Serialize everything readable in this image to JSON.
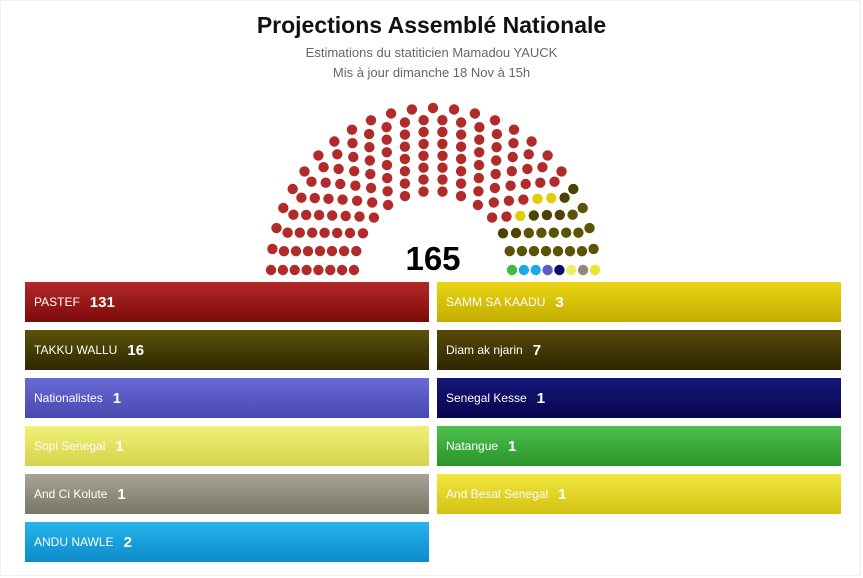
{
  "header": {
    "title": "Projections Assemblé Nationale",
    "subtitle_line1": "Estimations du statiticien Mamadou YAUCK",
    "subtitle_line2": "Mis à jour dimanche 18 Nov à 15h"
  },
  "chart_data": {
    "type": "parliament",
    "title": "Projections Assemblé Nationale",
    "total_label": "165",
    "total_seats": 165,
    "series": [
      {
        "name": "PASTEF",
        "value": 131,
        "color": "#b22b2b"
      },
      {
        "name": "TAKKU WALLU",
        "value": 16,
        "color": "#5b5305"
      },
      {
        "name": "Nationalistes",
        "value": 1,
        "color": "#5a5ac8"
      },
      {
        "name": "Sopi Senegal",
        "value": 1,
        "color": "#ecec6a"
      },
      {
        "name": "And Ci Kolute",
        "value": 1,
        "color": "#8e8a7c"
      },
      {
        "name": "ANDU NAWLE",
        "value": 2,
        "color": "#1ea9e4"
      },
      {
        "name": "SAMM SA KAADU",
        "value": 3,
        "color": "#e2cd05"
      },
      {
        "name": "Diam ak njarin",
        "value": 7,
        "color": "#4e4203"
      },
      {
        "name": "Senegal Kesse",
        "value": 1,
        "color": "#0d0d6b"
      },
      {
        "name": "Natangue",
        "value": 1,
        "color": "#3dbe3d"
      },
      {
        "name": "And Besal Senegal",
        "value": 1,
        "color": "#ede132"
      }
    ],
    "seat_order": [
      "PASTEF",
      "SAMM SA KAADU",
      "Diam ak njarin",
      "TAKKU WALLU",
      "Natangue",
      "ANDU NAWLE",
      "Nationalistes",
      "Senegal Kesse",
      "Sopi Senegal",
      "And Ci Kolute",
      "And Besal Senegal"
    ]
  },
  "legend": [
    {
      "name": "PASTEF",
      "seats": "131",
      "color_top": "#b42828",
      "color_bottom": "#7c0a0a"
    },
    {
      "name": "SAMM SA KAADU",
      "seats": "3",
      "color_top": "#ead414",
      "color_bottom": "#c4ad00"
    },
    {
      "name": "TAKKU WALLU",
      "seats": "16",
      "color_top": "#5a5208",
      "color_bottom": "#2e2800"
    },
    {
      "name": "Diam ak njarin",
      "seats": "7",
      "color_top": "#574a08",
      "color_bottom": "#2e2500"
    },
    {
      "name": "Nationalistes",
      "seats": "1",
      "color_top": "#6a6ad8",
      "color_bottom": "#4848b0"
    },
    {
      "name": "Senegal Kesse",
      "seats": "1",
      "color_top": "#16167a",
      "color_bottom": "#06064e"
    },
    {
      "name": "Sopi Senegal",
      "seats": "1",
      "color_top": "#f0f078",
      "color_bottom": "#d4d44a"
    },
    {
      "name": "Natangue",
      "seats": "1",
      "color_top": "#4ec04e",
      "color_bottom": "#2a942a"
    },
    {
      "name": "And Ci Kolute",
      "seats": "1",
      "color_top": "#a8a496",
      "color_bottom": "#7a7666"
    },
    {
      "name": "And Besal Senegal",
      "seats": "1",
      "color_top": "#f2e63e",
      "color_bottom": "#d2c212"
    },
    {
      "name": "ANDU NAWLE",
      "seats": "2",
      "color_top": "#28b4ec",
      "color_bottom": "#0c8cc8"
    }
  ]
}
